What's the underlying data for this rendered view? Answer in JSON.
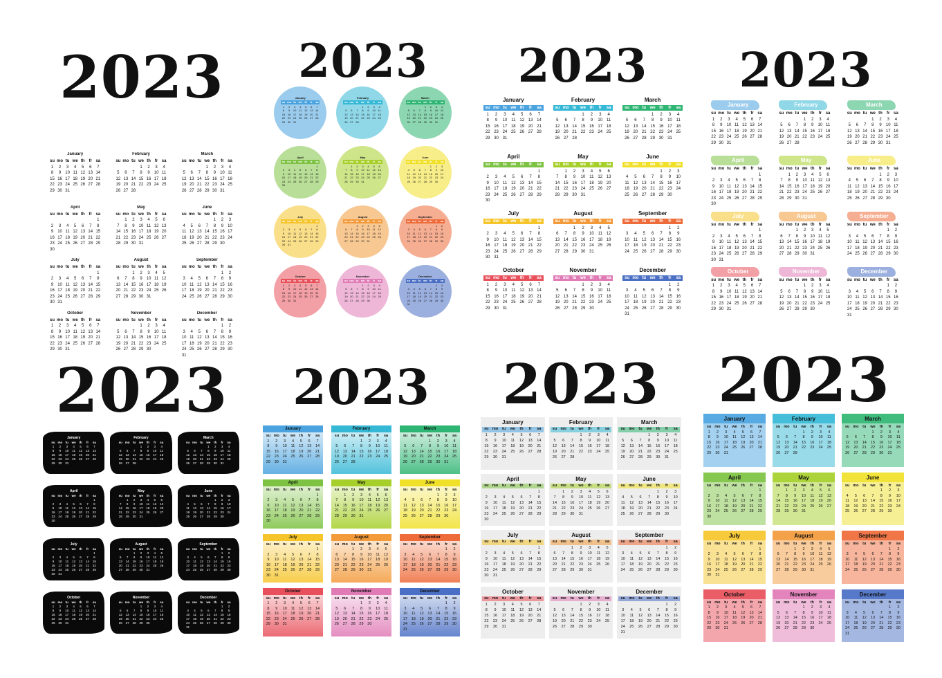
{
  "year": "2023",
  "weekdays": [
    "su",
    "mo",
    "tu",
    "we",
    "th",
    "fr",
    "sa"
  ],
  "months": [
    {
      "name": "January",
      "days": 31,
      "start": 0
    },
    {
      "name": "February",
      "days": 28,
      "start": 3
    },
    {
      "name": "March",
      "days": 31,
      "start": 3
    },
    {
      "name": "April",
      "days": 30,
      "start": 6
    },
    {
      "name": "May",
      "days": 31,
      "start": 1
    },
    {
      "name": "June",
      "days": 30,
      "start": 4
    },
    {
      "name": "July",
      "days": 31,
      "start": 6
    },
    {
      "name": "August",
      "days": 31,
      "start": 2
    },
    {
      "name": "September",
      "days": 30,
      "start": 5
    },
    {
      "name": "October",
      "days": 31,
      "start": 0
    },
    {
      "name": "November",
      "days": 30,
      "start": 3
    },
    {
      "name": "December",
      "days": 31,
      "start": 5
    }
  ],
  "month_colors": [
    "#4aa3df",
    "#35b8d6",
    "#2fb573",
    "#7dc242",
    "#a6cf2a",
    "#f0e02a",
    "#f6c52c",
    "#f39a3b",
    "#ee6b3a",
    "#e8505b",
    "#e07bb6",
    "#4a6fc4"
  ],
  "panels": [
    {
      "style": "plain"
    },
    {
      "style": "circles"
    },
    {
      "style": "bars"
    },
    {
      "style": "brush"
    },
    {
      "style": "black-brush"
    },
    {
      "style": "gradient-boxes"
    },
    {
      "style": "gray-boxes"
    },
    {
      "style": "color-boxes"
    }
  ]
}
